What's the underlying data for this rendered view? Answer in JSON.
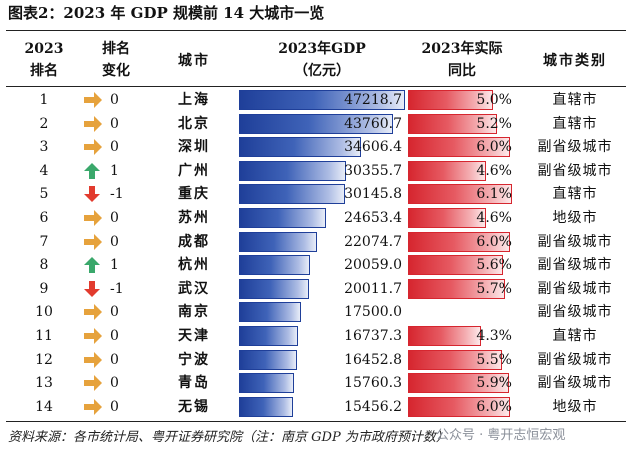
{
  "title": "图表2：2023 年 GDP 规模前 14 大城市一览",
  "headers": {
    "rank": [
      "2023",
      "排名"
    ],
    "change": [
      "排名",
      "变化"
    ],
    "city": "城市",
    "gdp": [
      "2023年GDP",
      "（亿元）"
    ],
    "growth": [
      "2023年实际",
      "同比"
    ],
    "type": "城市类别"
  },
  "colors": {
    "up": "#3aa86b",
    "down": "#e23b2e",
    "flat": "#e6a23c",
    "gdp_bar": "#1f3f99",
    "growth_bar": "#d6262f"
  },
  "gdp_scale_max": 47218.7,
  "growth_scale_max": 6.1,
  "rows": [
    {
      "rank": "1",
      "dir": "flat",
      "change": "0",
      "city": "上海",
      "gdp_value": 47218.7,
      "gdp": "47218.7",
      "growth_value": 5.0,
      "growth": "5.0%",
      "type": "直辖市"
    },
    {
      "rank": "2",
      "dir": "flat",
      "change": "0",
      "city": "北京",
      "gdp_value": 43760.7,
      "gdp": "43760.7",
      "growth_value": 5.2,
      "growth": "5.2%",
      "type": "直辖市"
    },
    {
      "rank": "3",
      "dir": "flat",
      "change": "0",
      "city": "深圳",
      "gdp_value": 34606.4,
      "gdp": "34606.4",
      "growth_value": 6.0,
      "growth": "6.0%",
      "type": "副省级城市"
    },
    {
      "rank": "4",
      "dir": "up",
      "change": "1",
      "city": "广州",
      "gdp_value": 30355.7,
      "gdp": "30355.7",
      "growth_value": 4.6,
      "growth": "4.6%",
      "type": "副省级城市"
    },
    {
      "rank": "5",
      "dir": "down",
      "change": "-1",
      "city": "重庆",
      "gdp_value": 30145.8,
      "gdp": "30145.8",
      "growth_value": 6.1,
      "growth": "6.1%",
      "type": "直辖市"
    },
    {
      "rank": "6",
      "dir": "flat",
      "change": "0",
      "city": "苏州",
      "gdp_value": 24653.4,
      "gdp": "24653.4",
      "growth_value": 4.6,
      "growth": "4.6%",
      "type": "地级市"
    },
    {
      "rank": "7",
      "dir": "flat",
      "change": "0",
      "city": "成都",
      "gdp_value": 22074.7,
      "gdp": "22074.7",
      "growth_value": 6.0,
      "growth": "6.0%",
      "type": "副省级城市"
    },
    {
      "rank": "8",
      "dir": "up",
      "change": "1",
      "city": "杭州",
      "gdp_value": 20059.0,
      "gdp": "20059.0",
      "growth_value": 5.6,
      "growth": "5.6%",
      "type": "副省级城市"
    },
    {
      "rank": "9",
      "dir": "down",
      "change": "-1",
      "city": "武汉",
      "gdp_value": 20011.7,
      "gdp": "20011.7",
      "growth_value": 5.7,
      "growth": "5.7%",
      "type": "副省级城市"
    },
    {
      "rank": "10",
      "dir": "flat",
      "change": "0",
      "city": "南京",
      "gdp_value": 17500.0,
      "gdp": "17500.0",
      "growth_value": null,
      "growth": "",
      "type": "副省级城市"
    },
    {
      "rank": "11",
      "dir": "flat",
      "change": "0",
      "city": "天津",
      "gdp_value": 16737.3,
      "gdp": "16737.3",
      "growth_value": 4.3,
      "growth": "4.3%",
      "type": "直辖市"
    },
    {
      "rank": "12",
      "dir": "flat",
      "change": "0",
      "city": "宁波",
      "gdp_value": 16452.8,
      "gdp": "16452.8",
      "growth_value": 5.5,
      "growth": "5.5%",
      "type": "副省级城市"
    },
    {
      "rank": "13",
      "dir": "flat",
      "change": "0",
      "city": "青岛",
      "gdp_value": 15760.3,
      "gdp": "15760.3",
      "growth_value": 5.9,
      "growth": "5.9%",
      "type": "副省级城市"
    },
    {
      "rank": "14",
      "dir": "flat",
      "change": "0",
      "city": "无锡",
      "gdp_value": 15456.2,
      "gdp": "15456.2",
      "growth_value": 6.0,
      "growth": "6.0%",
      "type": "地级市"
    }
  ],
  "source": "资料来源：各市统计局、粤开证券研究院（注：南京 GDP 为市政府预计数）",
  "watermark": "公众号 · 粤开志恒宏观"
}
